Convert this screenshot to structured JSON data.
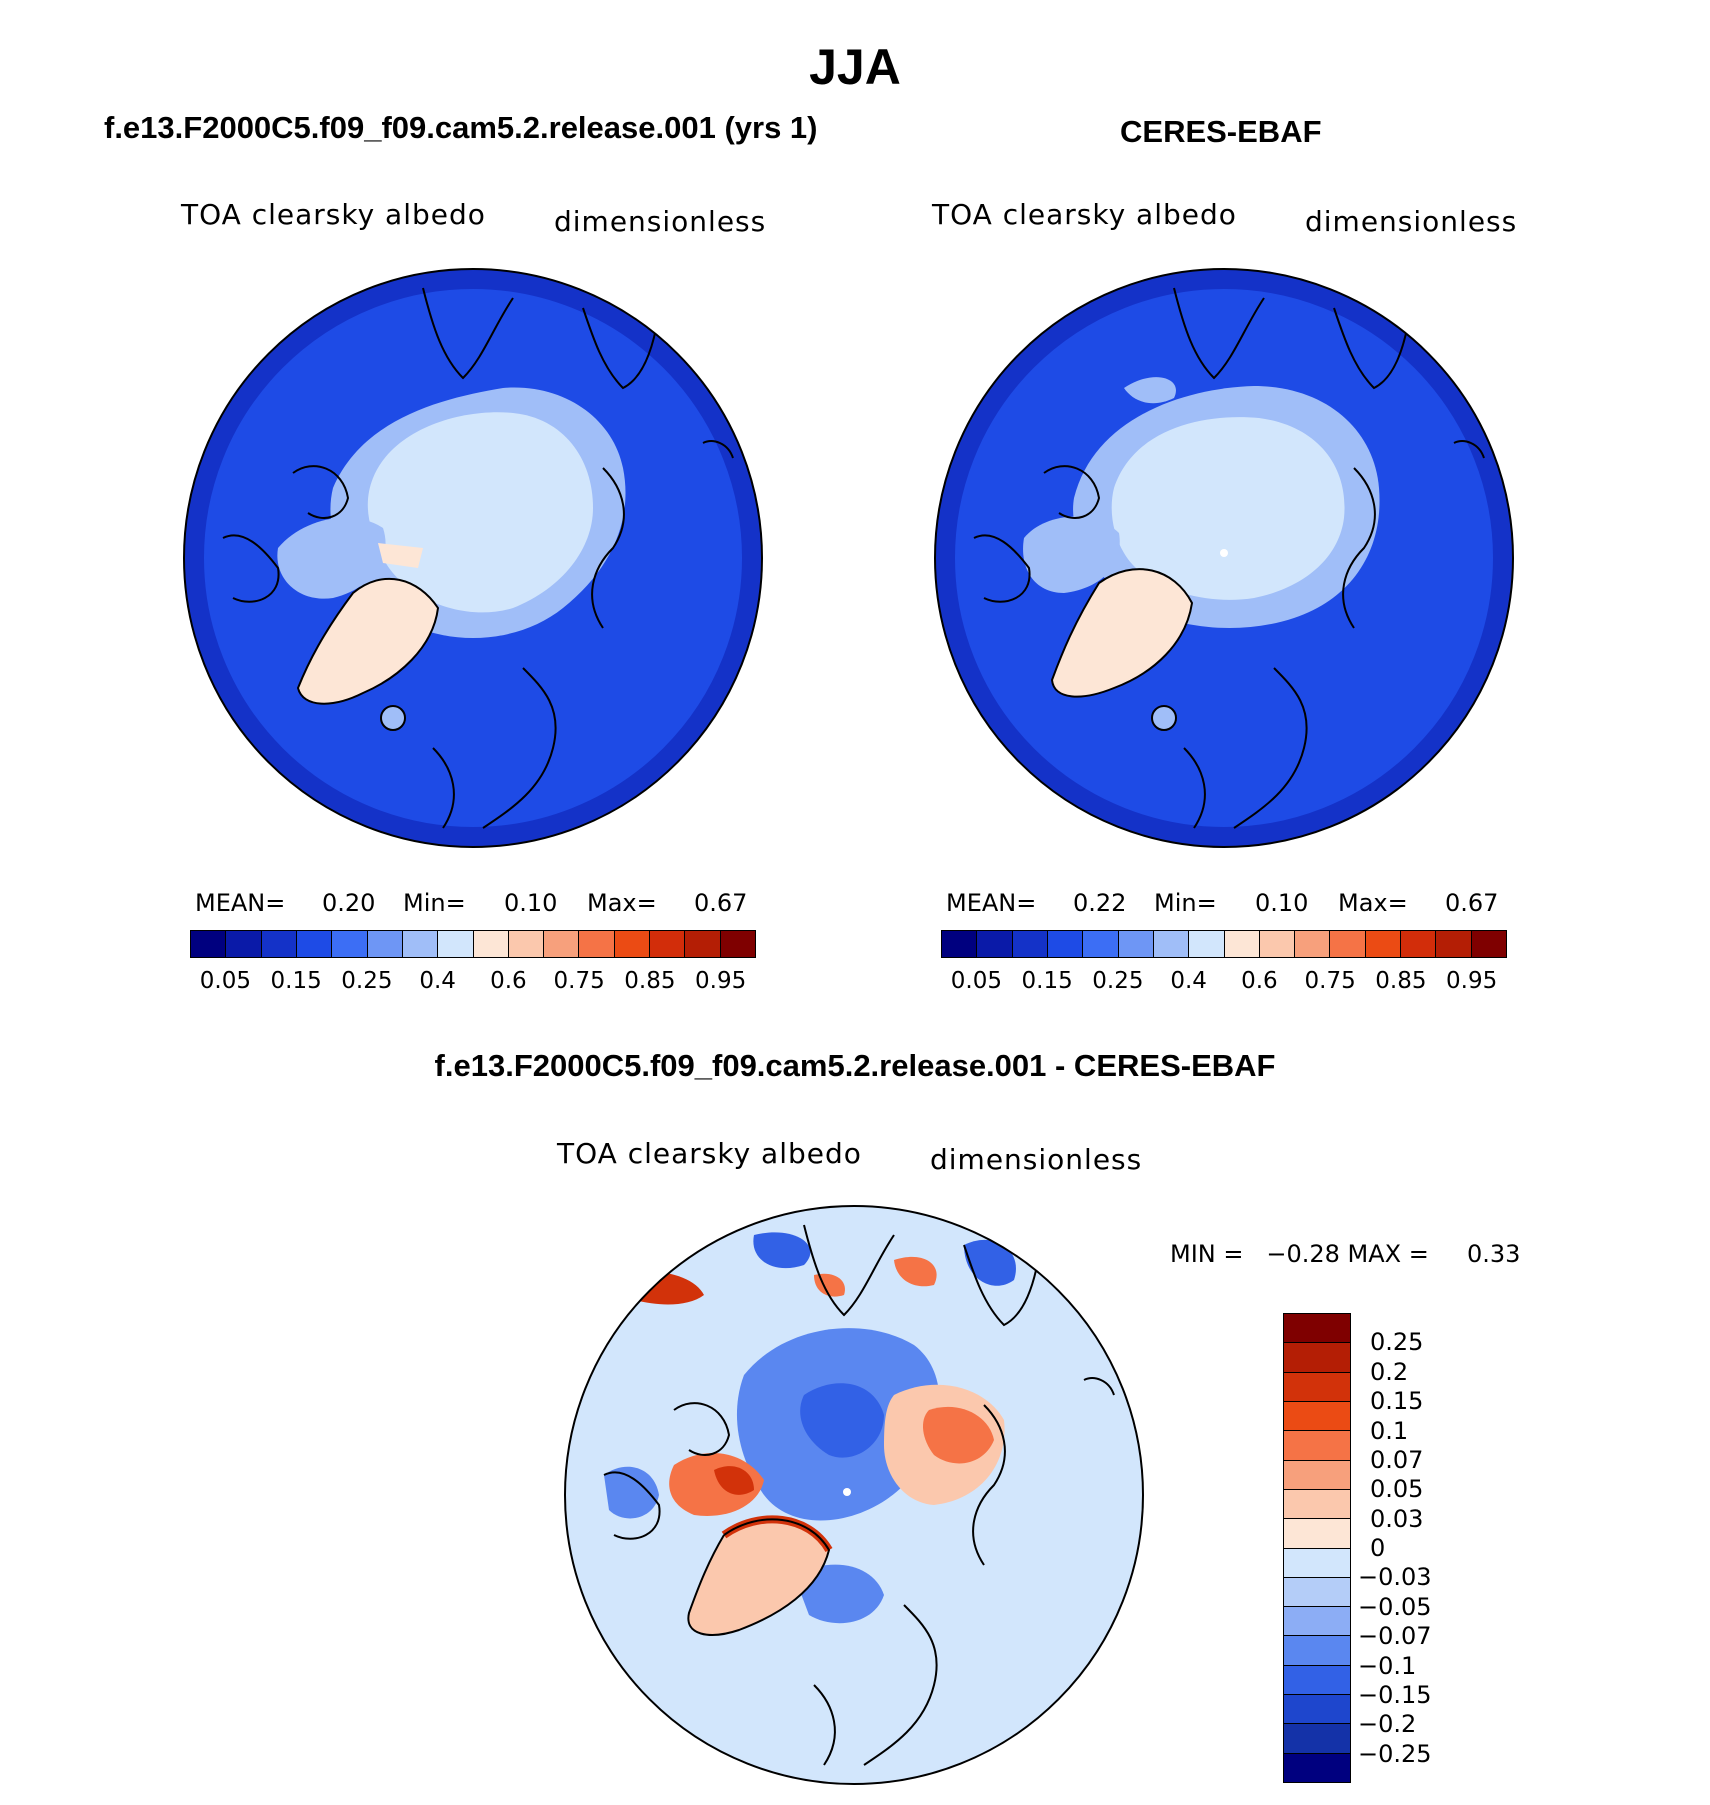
{
  "main_title": "JJA",
  "panels": [
    {
      "title": "f.e13.F2000C5.f09_f09.cam5.2.release.001 (yrs 1)",
      "variable": "TOA clearsky albedo",
      "units": "dimensionless",
      "mean_label": "MEAN=",
      "mean_value": "0.20",
      "min_label": "Min=",
      "min_value": "0.10",
      "max_label": "Max=",
      "max_value": "0.67"
    },
    {
      "title": "CERES-EBAF",
      "variable": "TOA clearsky albedo",
      "units": "dimensionless",
      "mean_label": "MEAN=",
      "mean_value": "0.22",
      "min_label": "Min=",
      "min_value": "0.10",
      "max_label": "Max=",
      "max_value": "0.67"
    },
    {
      "title": "f.e13.F2000C5.f09_f09.cam5.2.release.001 - CERES-EBAF",
      "variable": "TOA clearsky albedo",
      "units": "dimensionless",
      "minmax_text": "MIN =   −0.28 MAX =     0.33"
    }
  ],
  "colorbar_top": {
    "colors": [
      "#00007f",
      "#0a1aa8",
      "#1432c8",
      "#1e4be6",
      "#3c6ef5",
      "#6e96f5",
      "#a0bef8",
      "#d2e6fc",
      "#fde6d6",
      "#fbc8ad",
      "#f7a07c",
      "#f57346",
      "#eb4b14",
      "#d22d0a",
      "#b41e05",
      "#7f0000"
    ],
    "tick_labels": [
      "0.05",
      "0.15",
      "0.25",
      "0.4",
      "0.6",
      "0.75",
      "0.85",
      "0.95"
    ]
  },
  "colorbar_diff": {
    "colors": [
      "#7f0000",
      "#b41e05",
      "#d2320a",
      "#eb4b14",
      "#f57346",
      "#f7a07c",
      "#fbc8ad",
      "#fde6d6",
      "#d2e6fc",
      "#b4cdf8",
      "#8cadf5",
      "#5a87f0",
      "#3261e6",
      "#1e46cd",
      "#1432a8",
      "#00007f"
    ],
    "tick_labels": [
      "0.25",
      "0.2",
      "0.15",
      "0.1",
      "0.07",
      "0.05",
      "0.03",
      "0",
      "−0.03",
      "−0.05",
      "−0.07",
      "−0.1",
      "−0.15",
      "−0.2",
      "−0.25"
    ]
  },
  "map_colors": {
    "ocean": "#1e4be6",
    "ocean_edge": "#1432c8",
    "ice": "#d2e6fc",
    "ice_mid": "#a0bef8",
    "greenland": "#fde6d6",
    "diff_bg": "#d2e6fc",
    "diff_neg": "#5a87f0",
    "diff_neg2": "#3261e6",
    "diff_pos": "#f57346",
    "diff_pos2": "#d2320a",
    "diff_pos3": "#fbc8ad"
  }
}
